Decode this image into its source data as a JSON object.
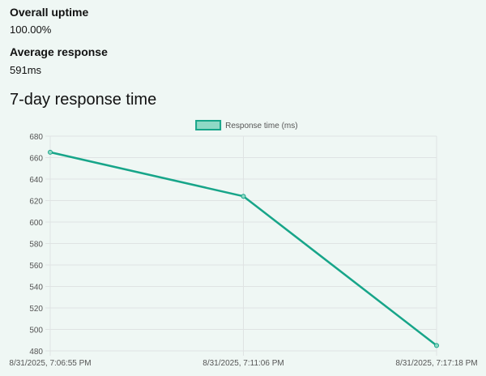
{
  "stats": {
    "uptime_label": "Overall uptime",
    "uptime_value": "100.00%",
    "avg_label": "Average response",
    "avg_value": "591ms"
  },
  "section_title": "7-day response time",
  "colors": {
    "line": "#17a589",
    "legend_fill": "#8fd9c5",
    "grid": "#dfe3e3",
    "axis_text": "#555555",
    "background": "#eff7f4"
  },
  "chart_data": {
    "type": "line",
    "categories": [
      "8/31/2025, 7:06:55 PM",
      "8/31/2025, 7:11:06 PM",
      "8/31/2025, 7:17:18 PM"
    ],
    "series": [
      {
        "name": "Response time (ms)",
        "values": [
          665,
          624,
          485
        ]
      }
    ],
    "ylim": [
      480,
      680
    ],
    "yticks": [
      480,
      500,
      520,
      540,
      560,
      580,
      600,
      620,
      640,
      660,
      680
    ],
    "legend_position": "top-center",
    "grid": true
  }
}
